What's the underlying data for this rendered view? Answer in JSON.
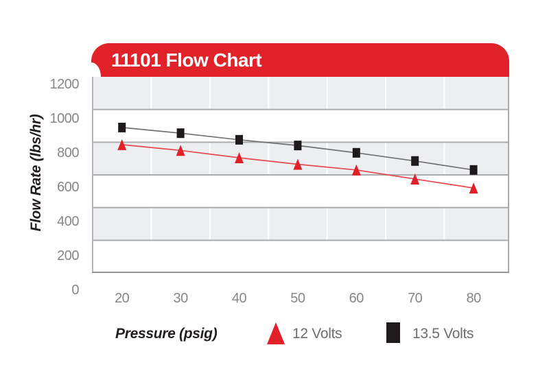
{
  "title": "11101 Flow Chart",
  "colors": {
    "banner_red": "#e12228",
    "series_red_marker": "#e2202a",
    "series_red_line": "#e8474d",
    "series_black_marker": "#1e1a1b",
    "series_black_line": "#707173",
    "band_gray": "#edeef0",
    "band_white": "#ffffff",
    "grid_major": "#a9abae",
    "grid_vertical": "#ffffff",
    "axis_bottom": "#95979a",
    "axis_left": "#b4b6b9",
    "tick_text": "#85878a",
    "legend_text": "#6d6e70",
    "title_text": "#ffffff",
    "axis_title_text": "#231f20"
  },
  "y_axis": {
    "label": "Flow Rate (lbs/hr)",
    "tick_labels": [
      "1200",
      "1000",
      "800",
      "600",
      "400",
      "200",
      "0"
    ]
  },
  "x_axis": {
    "label": "Pressure (psig)",
    "tick_labels": [
      "20",
      "30",
      "40",
      "50",
      "60",
      "70",
      "80"
    ]
  },
  "legend": [
    {
      "label": "12 Volts",
      "marker": "triangle",
      "color": "#e2202a"
    },
    {
      "label": "13.5 Volts",
      "marker": "square",
      "color": "#1e1a1b"
    }
  ],
  "chart_data": {
    "type": "line",
    "title": "11101 Flow Chart",
    "xlabel": "Pressure (psig)",
    "ylabel": "Flow Rate (lbs/hr)",
    "x": [
      20,
      30,
      40,
      50,
      60,
      70,
      80
    ],
    "xlim": [
      15,
      87
    ],
    "ylim": [
      0,
      1200
    ],
    "y_step": 200,
    "grid": "banded-horizontal",
    "legend_position": "bottom",
    "series": [
      {
        "name": "12 Volts",
        "marker": "triangle",
        "color": "#e2202a",
        "line_color": "#e8474d",
        "values": [
          785,
          750,
          705,
          665,
          630,
          575,
          520
        ]
      },
      {
        "name": "13.5 Volts",
        "marker": "square",
        "color": "#1e1a1b",
        "line_color": "#707173",
        "values": [
          890,
          855,
          815,
          780,
          735,
          685,
          630
        ]
      }
    ]
  }
}
